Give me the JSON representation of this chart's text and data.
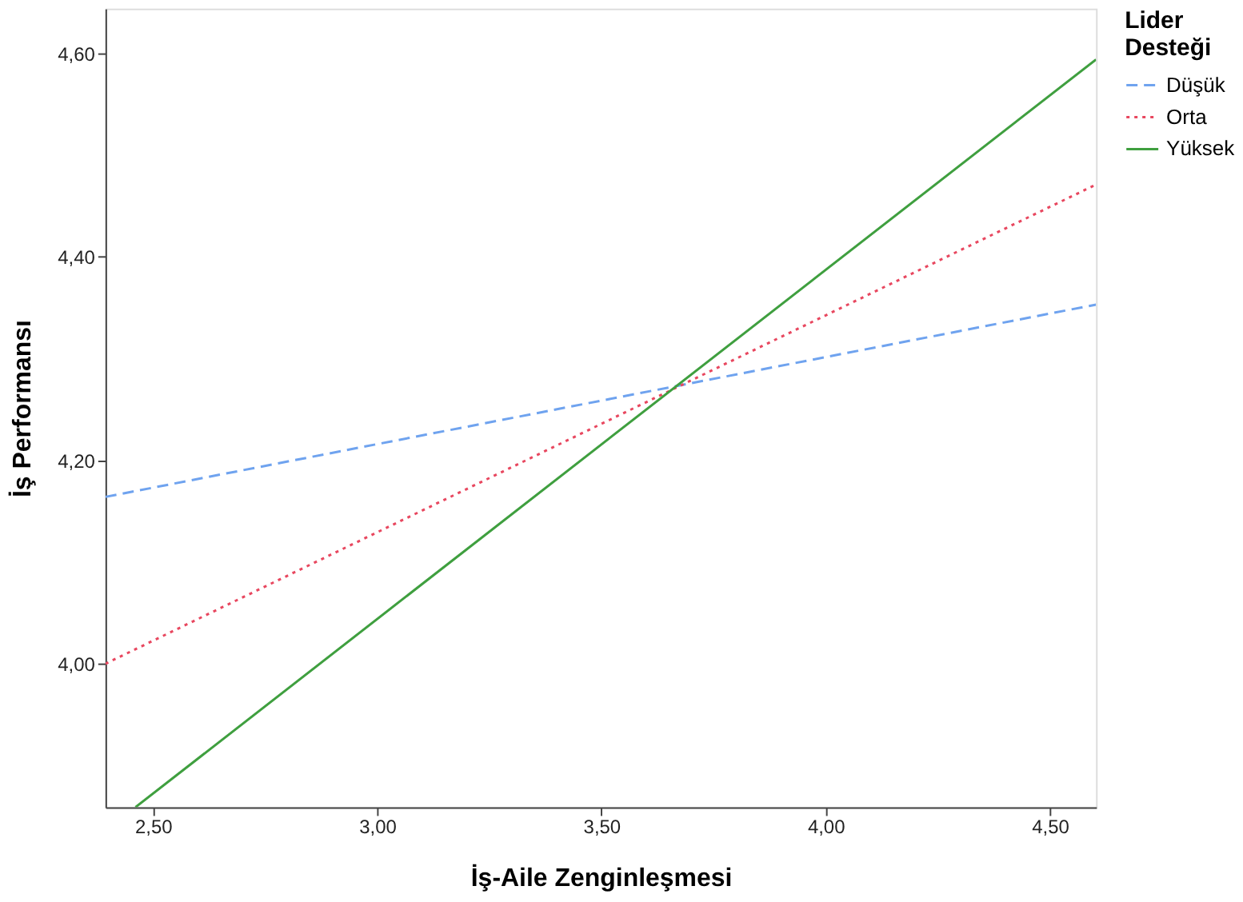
{
  "chart_data": {
    "type": "line",
    "xlabel": "İş-Aile Zenginleşmesi",
    "ylabel": "İş Performansı",
    "legend_title": "Lider Desteği",
    "legend": "top right",
    "grid": false,
    "marker": "none",
    "xlim": [
      2.394,
      4.603
    ],
    "ylim": [
      3.859,
      4.644
    ],
    "xticks": [
      {
        "value": 2.5,
        "label": "2,50"
      },
      {
        "value": 3.0,
        "label": "3,00"
      },
      {
        "value": 3.5,
        "label": "3,50"
      },
      {
        "value": 4.0,
        "label": "4,00"
      },
      {
        "value": 4.5,
        "label": "4,50"
      }
    ],
    "yticks": [
      {
        "value": 4.0,
        "label": "4,00"
      },
      {
        "value": 4.2,
        "label": "4,20"
      },
      {
        "value": 4.4,
        "label": "4,40"
      },
      {
        "value": 4.6,
        "label": "4,60"
      }
    ],
    "series": [
      {
        "name": "Düşük",
        "color": "#6fa3ef",
        "line_style": "dashed",
        "x": [
          2.394,
          4.603
        ],
        "values": [
          4.164,
          4.353
        ]
      },
      {
        "name": "Orta",
        "color": "#e8475f",
        "line_style": "dotted",
        "x": [
          2.394,
          4.603
        ],
        "values": [
          4.0,
          4.471
        ]
      },
      {
        "name": "Yüksek",
        "color": "#3f9f3f",
        "line_style": "solid",
        "x": [
          2.461,
          4.603
        ],
        "values": [
          3.859,
          4.594
        ]
      }
    ]
  }
}
